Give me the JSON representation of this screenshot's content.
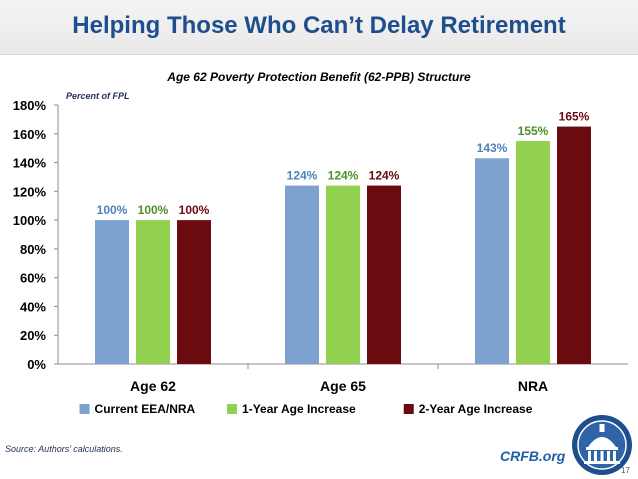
{
  "slide": {
    "title": "Helping Those Who Can’t Delay Retirement",
    "source": "Source: Authors’ calculations.",
    "brand": "CRFB.org",
    "page_number": "17",
    "accent_color": "#1f4e8c"
  },
  "chart_data": {
    "type": "bar",
    "title": "Age 62 Poverty Protection Benefit (62-PPB) Structure",
    "ylabel": "Percent of FPL",
    "xlabel": "",
    "categories": [
      "Age 62",
      "Age 65",
      "NRA"
    ],
    "series": [
      {
        "name": "Current EEA/NRA",
        "values": [
          100,
          124,
          143
        ],
        "labels": [
          "100%",
          "124%",
          "143%"
        ],
        "color": "#7da2cf",
        "label_color": "#4f81bd"
      },
      {
        "name": "1-Year Age Increase",
        "values": [
          100,
          124,
          155
        ],
        "labels": [
          "100%",
          "124%",
          "155%"
        ],
        "color": "#92d050",
        "label_color": "#4f8f2a"
      },
      {
        "name": "2-Year Age Increase",
        "values": [
          100,
          124,
          165
        ],
        "labels": [
          "100%",
          "124%",
          "165%"
        ],
        "color": "#6b0a0f",
        "label_color": "#6b0a0f"
      }
    ],
    "ylim": [
      0,
      180
    ],
    "yticks": [
      0,
      20,
      40,
      60,
      80,
      100,
      120,
      140,
      160,
      180
    ],
    "ytick_labels": [
      "0%",
      "20%",
      "40%",
      "60%",
      "80%",
      "100%",
      "120%",
      "140%",
      "160%",
      "180%"
    ],
    "grid": false,
    "legend_position": "bottom"
  }
}
